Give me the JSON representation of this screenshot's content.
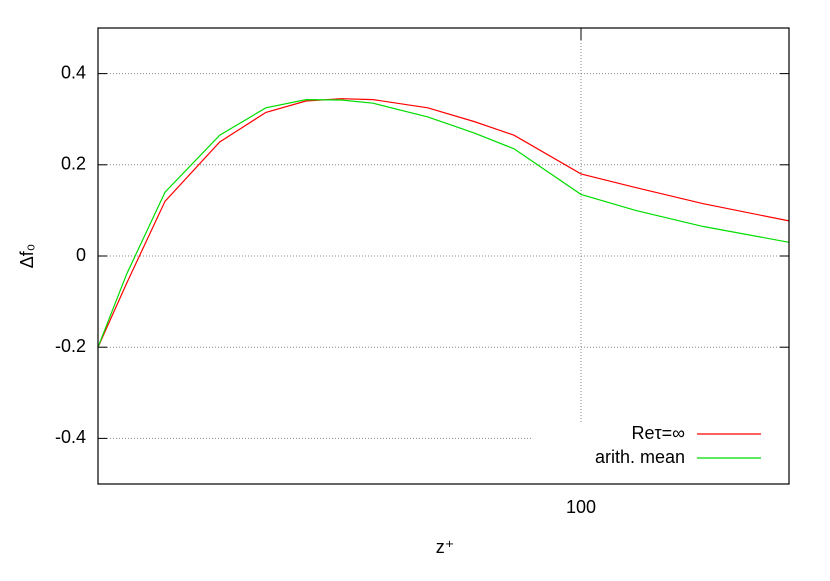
{
  "chart_data": {
    "type": "line",
    "xlabel": "z⁺",
    "ylabel": "Δf₀",
    "x": [
      20,
      22,
      25,
      30,
      35,
      40,
      45,
      50,
      60,
      70,
      80,
      100,
      120,
      150,
      200
    ],
    "series": [
      {
        "name": "Reτ=∞",
        "color": "#ff0000",
        "values": [
          -0.2,
          -0.06,
          0.12,
          0.25,
          0.315,
          0.34,
          0.345,
          0.343,
          0.325,
          0.295,
          0.265,
          0.18,
          0.15,
          0.115,
          0.077
        ]
      },
      {
        "name": "arith. mean",
        "color": "#00dd00",
        "values": [
          -0.2,
          -0.04,
          0.14,
          0.265,
          0.325,
          0.343,
          0.342,
          0.335,
          0.305,
          0.27,
          0.235,
          0.135,
          0.1,
          0.065,
          0.03
        ]
      }
    ],
    "xlim": [
      20,
      200
    ],
    "xticks": [
      100
    ],
    "xlog": true,
    "ylim": [
      -0.5,
      0.5
    ],
    "yticks": [
      -0.4,
      -0.2,
      0,
      0.2,
      0.4
    ],
    "grid": true,
    "legend": "bottom-right"
  }
}
